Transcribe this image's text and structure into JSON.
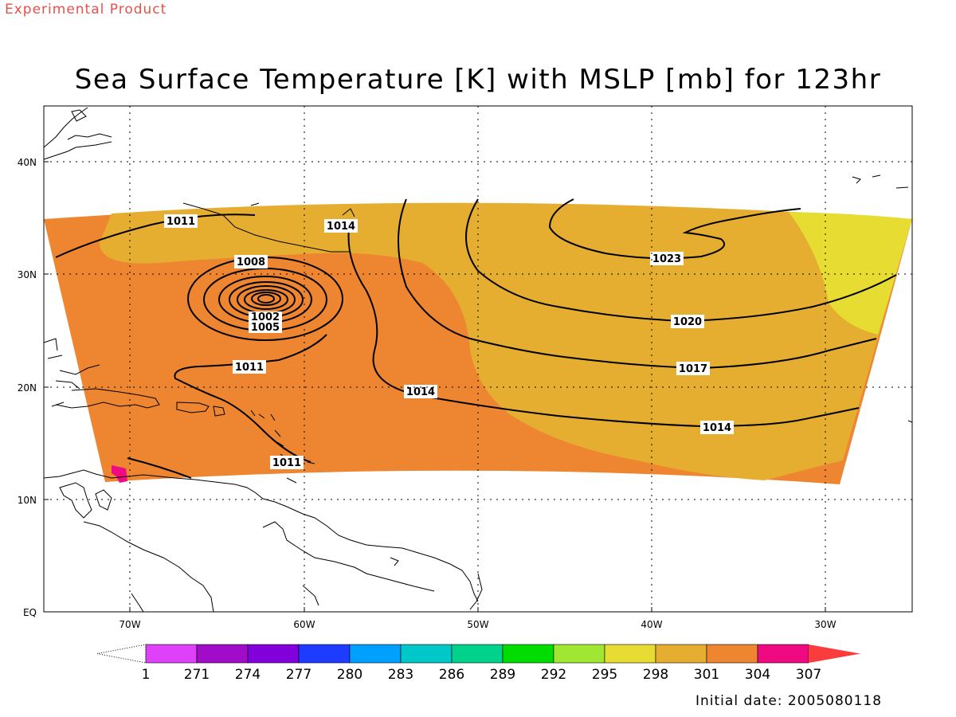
{
  "header": {
    "product_label": "Experimental Product",
    "title": "Sea Surface Temperature [K] with MSLP [mb] for 123hr"
  },
  "map": {
    "lon_ticks": [
      "70W",
      "60W",
      "50W",
      "40W",
      "30W"
    ],
    "lat_ticks": [
      "EQ",
      "10N",
      "20N",
      "30N",
      "40N"
    ],
    "sst_colors": {
      "warm_304": "#ee8530",
      "mid_301": "#e6ae30",
      "cool_298": "#e6dc32",
      "hot_307": "#f00a82"
    },
    "isobar_labels": [
      {
        "id": "l1011a",
        "text": "1011"
      },
      {
        "id": "l1014a",
        "text": "1014"
      },
      {
        "id": "l1008",
        "text": "1008"
      },
      {
        "id": "l1002",
        "text": "1002"
      },
      {
        "id": "l1005",
        "text": "1005"
      },
      {
        "id": "l1011b",
        "text": "1011"
      },
      {
        "id": "l1014b",
        "text": "1014"
      },
      {
        "id": "l1011c",
        "text": "1011"
      },
      {
        "id": "l1023",
        "text": "1023"
      },
      {
        "id": "l1020",
        "text": "1020"
      },
      {
        "id": "l1017",
        "text": "1017"
      },
      {
        "id": "l1014c",
        "text": "1014"
      }
    ]
  },
  "colorbar": {
    "colors": [
      "#df40fa",
      "#a00cc8",
      "#8200dc",
      "#1e3cff",
      "#00a0ff",
      "#00c8c8",
      "#00d28c",
      "#00dc00",
      "#a0e632",
      "#e6dc32",
      "#e6ae30",
      "#ee8530",
      "#f00a82",
      "#fa3c3c"
    ],
    "labels": [
      "1",
      "271",
      "274",
      "277",
      "280",
      "283",
      "286",
      "289",
      "292",
      "295",
      "298",
      "301",
      "304",
      "307"
    ]
  },
  "footer": {
    "initial_date": "Initial date: 2005080118"
  }
}
